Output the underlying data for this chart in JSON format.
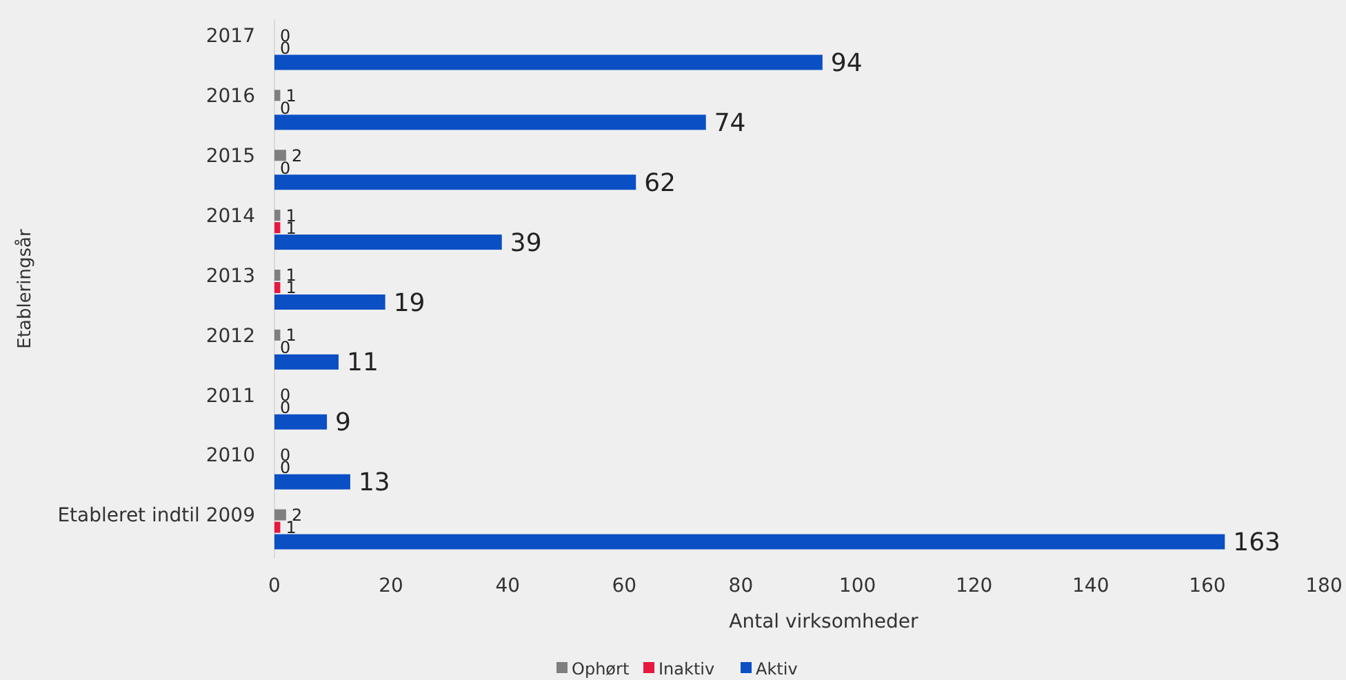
{
  "chart_data": {
    "type": "bar",
    "orientation": "horizontal",
    "xlabel": "Antal virksomheder",
    "ylabel": "Etableringsår",
    "categories": [
      "2017",
      "2016",
      "2015",
      "2014",
      "2013",
      "2012",
      "2011",
      "2010",
      "Etableret indtil 2009"
    ],
    "series": [
      {
        "name": "Ophørt",
        "color": "#7f7f7f",
        "values": [
          0,
          1,
          2,
          1,
          1,
          1,
          0,
          0,
          2
        ]
      },
      {
        "name": "Inaktiv",
        "color": "#e8173f",
        "values": [
          0,
          0,
          0,
          1,
          1,
          0,
          0,
          0,
          1
        ]
      },
      {
        "name": "Aktiv",
        "color": "#0a4fc4",
        "values": [
          94,
          74,
          62,
          39,
          19,
          11,
          9,
          13,
          163
        ]
      }
    ],
    "xlim": [
      0,
      180
    ],
    "xticks": [
      0,
      20,
      40,
      60,
      80,
      100,
      120,
      140,
      160,
      180
    ],
    "data_labels": true,
    "legend": "bottom",
    "grid": false
  }
}
